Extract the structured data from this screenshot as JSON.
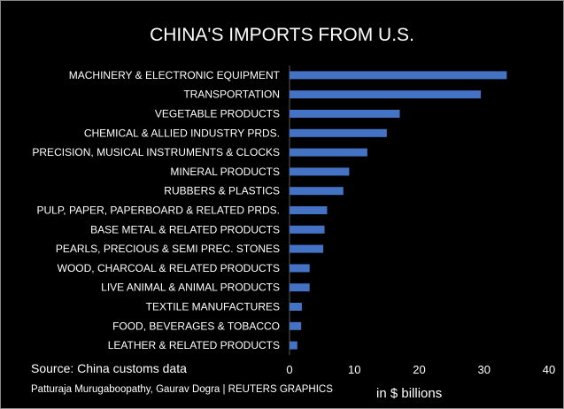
{
  "chart_data": {
    "type": "bar",
    "orientation": "horizontal",
    "title": "CHINA'S IMPORTS FROM U.S.",
    "categories": [
      "MACHINERY & ELECTRONIC EQUIPMENT",
      "TRANSPORTATION",
      "VEGETABLE PRODUCTS",
      "CHEMICAL & ALLIED INDUSTRY PRDS.",
      "PRECISION, MUSICAL INSTRUMENTS & CLOCKS",
      "MINERAL PRODUCTS",
      "RUBBERS & PLASTICS",
      "PULP, PAPER, PAPERBOARD & RELATED PRDS.",
      "BASE METAL & RELATED PRODUCTS",
      "PEARLS, PRECIOUS & SEMI PREC. STONES",
      "WOOD, CHARCOAL & RELATED PRODUCTS",
      "LIVE ANIMAL & ANIMAL PRODUCTS",
      "TEXTILE MANUFACTURES",
      "FOOD, BEVERAGES & TOBACCO",
      "LEATHER & RELATED PRODUCTS"
    ],
    "values": [
      33.5,
      29.5,
      17.0,
      15.0,
      12.0,
      9.2,
      8.3,
      5.8,
      5.4,
      5.2,
      3.1,
      3.1,
      1.9,
      1.8,
      1.2
    ],
    "xticks": [
      0,
      10,
      20,
      30,
      40
    ],
    "xlim": [
      0,
      40
    ],
    "xlabel": "in $ billions",
    "grid": false,
    "bar_color": "#4472c4",
    "background": "#000000",
    "text_color": "#ffffff"
  },
  "source": "Source: China customs data",
  "credit": "Patturaja Murugaboopathy, Gaurav Dogra  |  REUTERS GRAPHICS"
}
